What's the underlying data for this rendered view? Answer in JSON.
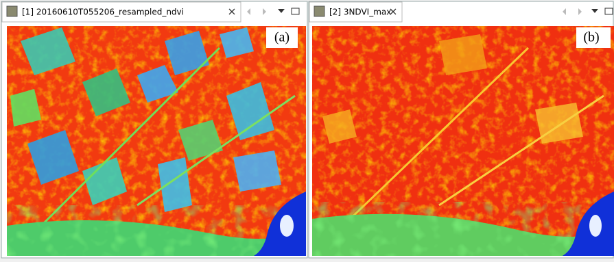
{
  "panels": [
    {
      "tab_title": "[1] 20160610T055206_resampled_ndvi",
      "label": "(a)"
    },
    {
      "tab_title": "[2] 3NDVI_max",
      "label": "(b)"
    }
  ]
}
